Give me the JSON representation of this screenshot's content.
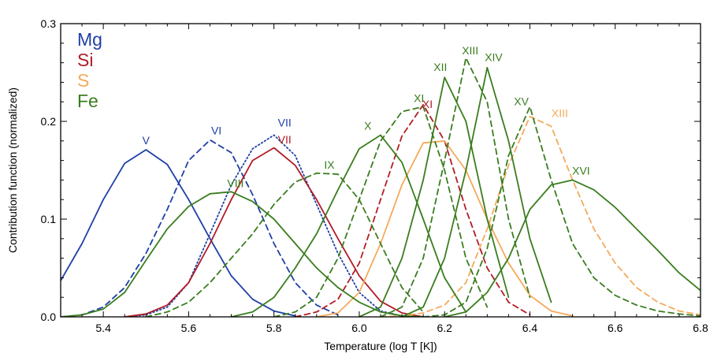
{
  "chart_data": {
    "type": "line",
    "title": "",
    "xlabel": "Temperature (log T [K])",
    "ylabel": "Contribution function (normalized)",
    "xlim": [
      5.3,
      6.8
    ],
    "ylim": [
      0.0,
      0.3
    ],
    "x_ticks": [
      5.4,
      5.6,
      5.8,
      6.0,
      6.2,
      6.4,
      6.6,
      6.8
    ],
    "y_ticks": [
      0.0,
      0.1,
      0.2,
      0.3
    ],
    "x_tick_labels": [
      "5.4",
      "5.6",
      "5.8",
      "6.0",
      "6.2",
      "6.4",
      "6.6",
      "6.8"
    ],
    "y_tick_labels": [
      "0.0",
      "0.1",
      "0.2",
      "0.3"
    ],
    "grid": false,
    "legend_placement": "top-left",
    "legend": [
      {
        "label": "Mg",
        "color": "#1f3fa6"
      },
      {
        "label": "Si",
        "color": "#b01c24"
      },
      {
        "label": "S",
        "color": "#f5a95a"
      },
      {
        "label": "Fe",
        "color": "#3a7d1e"
      }
    ],
    "series": [
      {
        "name": "Mg V",
        "element": "Mg",
        "label": "V",
        "color": "#1f3fa6",
        "dash": "solid",
        "x": [
          5.3,
          5.35,
          5.4,
          5.45,
          5.5,
          5.55,
          5.6,
          5.65,
          5.7,
          5.75,
          5.8,
          5.85
        ],
        "y": [
          0.037,
          0.075,
          0.12,
          0.157,
          0.171,
          0.156,
          0.12,
          0.08,
          0.042,
          0.018,
          0.006,
          0.001
        ],
        "label_at": [
          5.5,
          0.175
        ]
      },
      {
        "name": "Mg VI",
        "element": "Mg",
        "label": "VI",
        "color": "#1f3fa6",
        "dash": "dashed",
        "x": [
          5.3,
          5.35,
          5.4,
          5.45,
          5.5,
          5.55,
          5.6,
          5.65,
          5.7,
          5.75,
          5.8,
          5.85,
          5.9,
          5.95
        ],
        "y": [
          0.0,
          0.002,
          0.01,
          0.03,
          0.065,
          0.11,
          0.16,
          0.181,
          0.168,
          0.125,
          0.075,
          0.035,
          0.012,
          0.002
        ],
        "label_at": [
          5.665,
          0.185
        ]
      },
      {
        "name": "Mg VII",
        "element": "Mg",
        "label": "VII",
        "color": "#1f3fa6",
        "dash": "dotted",
        "x": [
          5.45,
          5.5,
          5.55,
          5.6,
          5.65,
          5.7,
          5.75,
          5.8,
          5.85,
          5.9,
          5.95,
          6.0,
          6.05,
          6.1
        ],
        "y": [
          0.0,
          0.002,
          0.01,
          0.035,
          0.085,
          0.135,
          0.172,
          0.186,
          0.165,
          0.115,
          0.065,
          0.025,
          0.006,
          0.001
        ],
        "label_at": [
          5.825,
          0.193
        ]
      },
      {
        "name": "Si VII",
        "element": "Si",
        "label": "VII",
        "color": "#b01c24",
        "dash": "solid",
        "x": [
          5.45,
          5.5,
          5.55,
          5.6,
          5.65,
          5.7,
          5.75,
          5.8,
          5.85,
          5.9,
          5.95,
          6.0,
          6.05,
          6.1,
          6.15
        ],
        "y": [
          0.0,
          0.003,
          0.012,
          0.035,
          0.075,
          0.12,
          0.16,
          0.173,
          0.155,
          0.12,
          0.08,
          0.042,
          0.016,
          0.004,
          0.0
        ],
        "label_at": [
          5.825,
          0.176
        ]
      },
      {
        "name": "Si XI",
        "element": "Si",
        "label": "XI",
        "color": "#b01c24",
        "dash": "dashed",
        "x": [
          5.85,
          5.9,
          5.95,
          6.0,
          6.05,
          6.1,
          6.15,
          6.2,
          6.25,
          6.3,
          6.35,
          6.4
        ],
        "y": [
          0.0,
          0.005,
          0.018,
          0.055,
          0.12,
          0.185,
          0.217,
          0.18,
          0.11,
          0.05,
          0.015,
          0.002
        ],
        "label_at": [
          6.16,
          0.212
        ]
      },
      {
        "name": "S XIII",
        "element": "S",
        "label": "XIII",
        "color": "#f5a95a",
        "dash": "dashed",
        "x": [
          6.05,
          6.1,
          6.15,
          6.2,
          6.25,
          6.3,
          6.35,
          6.4,
          6.45,
          6.5,
          6.55,
          6.6,
          6.65,
          6.7,
          6.75,
          6.8
        ],
        "y": [
          0.0,
          0.001,
          0.004,
          0.012,
          0.035,
          0.09,
          0.155,
          0.205,
          0.195,
          0.14,
          0.09,
          0.055,
          0.03,
          0.015,
          0.006,
          0.002
        ],
        "label_at": [
          6.47,
          0.203
        ]
      },
      {
        "name": "S (solid)",
        "element": "S",
        "label": "",
        "color": "#f5a95a",
        "dash": "solid",
        "x": [
          5.9,
          5.95,
          6.0,
          6.05,
          6.1,
          6.15,
          6.2,
          6.25,
          6.3,
          6.35,
          6.4,
          6.45,
          6.5
        ],
        "y": [
          0.0,
          0.004,
          0.025,
          0.075,
          0.135,
          0.178,
          0.18,
          0.15,
          0.1,
          0.055,
          0.022,
          0.006,
          0.001
        ],
        "label_at": null
      },
      {
        "name": "Fe VIII",
        "element": "Fe",
        "label": "VIII",
        "color": "#3a7d1e",
        "dash": "solid",
        "x": [
          5.3,
          5.35,
          5.4,
          5.45,
          5.5,
          5.55,
          5.6,
          5.65,
          5.7,
          5.75,
          5.8,
          5.85,
          5.9,
          5.95,
          6.0,
          6.05,
          6.1,
          6.15
        ],
        "y": [
          0.0,
          0.002,
          0.008,
          0.025,
          0.058,
          0.09,
          0.113,
          0.126,
          0.128,
          0.118,
          0.1,
          0.075,
          0.05,
          0.03,
          0.015,
          0.005,
          0.001,
          0.0
        ],
        "label_at": [
          5.71,
          0.131
        ]
      },
      {
        "name": "Fe IX",
        "element": "Fe",
        "label": "IX",
        "color": "#3a7d1e",
        "dash": "dashed",
        "x": [
          5.5,
          5.55,
          5.6,
          5.65,
          5.7,
          5.75,
          5.8,
          5.85,
          5.9,
          5.95,
          6.0,
          6.05,
          6.1,
          6.15
        ],
        "y": [
          0.0,
          0.005,
          0.015,
          0.035,
          0.06,
          0.085,
          0.115,
          0.138,
          0.147,
          0.146,
          0.12,
          0.075,
          0.03,
          0.005
        ],
        "label_at": [
          5.93,
          0.15
        ]
      },
      {
        "name": "Fe X",
        "element": "Fe",
        "label": "X",
        "color": "#3a7d1e",
        "dash": "solid",
        "x": [
          5.7,
          5.75,
          5.8,
          5.85,
          5.9,
          5.95,
          6.0,
          6.05,
          6.1,
          6.15,
          6.2,
          6.25
        ],
        "y": [
          0.0,
          0.005,
          0.02,
          0.05,
          0.085,
          0.13,
          0.172,
          0.186,
          0.158,
          0.1,
          0.04,
          0.005
        ],
        "label_at": [
          6.02,
          0.19
        ]
      },
      {
        "name": "Fe XI",
        "element": "Fe",
        "label": "XI",
        "color": "#3a7d1e",
        "dash": "dashed",
        "x": [
          5.8,
          5.85,
          5.9,
          5.95,
          6.0,
          6.05,
          6.1,
          6.15,
          6.2,
          6.25,
          6.3
        ],
        "y": [
          0.0,
          0.005,
          0.02,
          0.06,
          0.12,
          0.18,
          0.21,
          0.215,
          0.15,
          0.06,
          0.01
        ],
        "label_at": [
          6.14,
          0.218
        ]
      },
      {
        "name": "Fe XII",
        "element": "Fe",
        "label": "XII",
        "color": "#3a7d1e",
        "dash": "solid",
        "x": [
          6.0,
          6.05,
          6.1,
          6.15,
          6.2,
          6.25,
          6.3,
          6.35
        ],
        "y": [
          0.0,
          0.01,
          0.06,
          0.14,
          0.245,
          0.2,
          0.1,
          0.02
        ],
        "label_at": [
          6.19,
          0.25
        ]
      },
      {
        "name": "Fe XIII",
        "element": "Fe",
        "label": "XIII",
        "color": "#3a7d1e",
        "dash": "dashed",
        "x": [
          6.05,
          6.1,
          6.15,
          6.2,
          6.25,
          6.3,
          6.35,
          6.4
        ],
        "y": [
          0.0,
          0.01,
          0.06,
          0.16,
          0.265,
          0.22,
          0.1,
          0.02
        ],
        "label_at": [
          6.26,
          0.267
        ]
      },
      {
        "name": "Fe XIV",
        "element": "Fe",
        "label": "XIV",
        "color": "#3a7d1e",
        "dash": "solid",
        "x": [
          6.1,
          6.15,
          6.2,
          6.25,
          6.3,
          6.35,
          6.4,
          6.45
        ],
        "y": [
          0.0,
          0.01,
          0.06,
          0.15,
          0.255,
          0.18,
          0.08,
          0.015
        ],
        "label_at": [
          6.315,
          0.26
        ]
      },
      {
        "name": "Fe XV",
        "element": "Fe",
        "label": "XV",
        "color": "#3a7d1e",
        "dash": "dashed",
        "x": [
          6.15,
          6.2,
          6.25,
          6.3,
          6.35,
          6.4,
          6.45,
          6.5,
          6.55,
          6.6,
          6.65,
          6.7,
          6.75,
          6.8
        ],
        "y": [
          0.0,
          0.002,
          0.015,
          0.07,
          0.165,
          0.215,
          0.14,
          0.075,
          0.04,
          0.022,
          0.012,
          0.006,
          0.003,
          0.001
        ],
        "label_at": [
          6.38,
          0.215
        ]
      },
      {
        "name": "Fe XVI",
        "element": "Fe",
        "label": "XVI",
        "color": "#3a7d1e",
        "dash": "solid",
        "x": [
          6.2,
          6.25,
          6.3,
          6.35,
          6.4,
          6.45,
          6.5,
          6.55,
          6.6,
          6.65,
          6.7,
          6.75,
          6.8
        ],
        "y": [
          0.0,
          0.005,
          0.025,
          0.06,
          0.11,
          0.135,
          0.14,
          0.13,
          0.112,
          0.09,
          0.068,
          0.045,
          0.027
        ],
        "label_at": [
          6.52,
          0.144
        ]
      }
    ]
  }
}
